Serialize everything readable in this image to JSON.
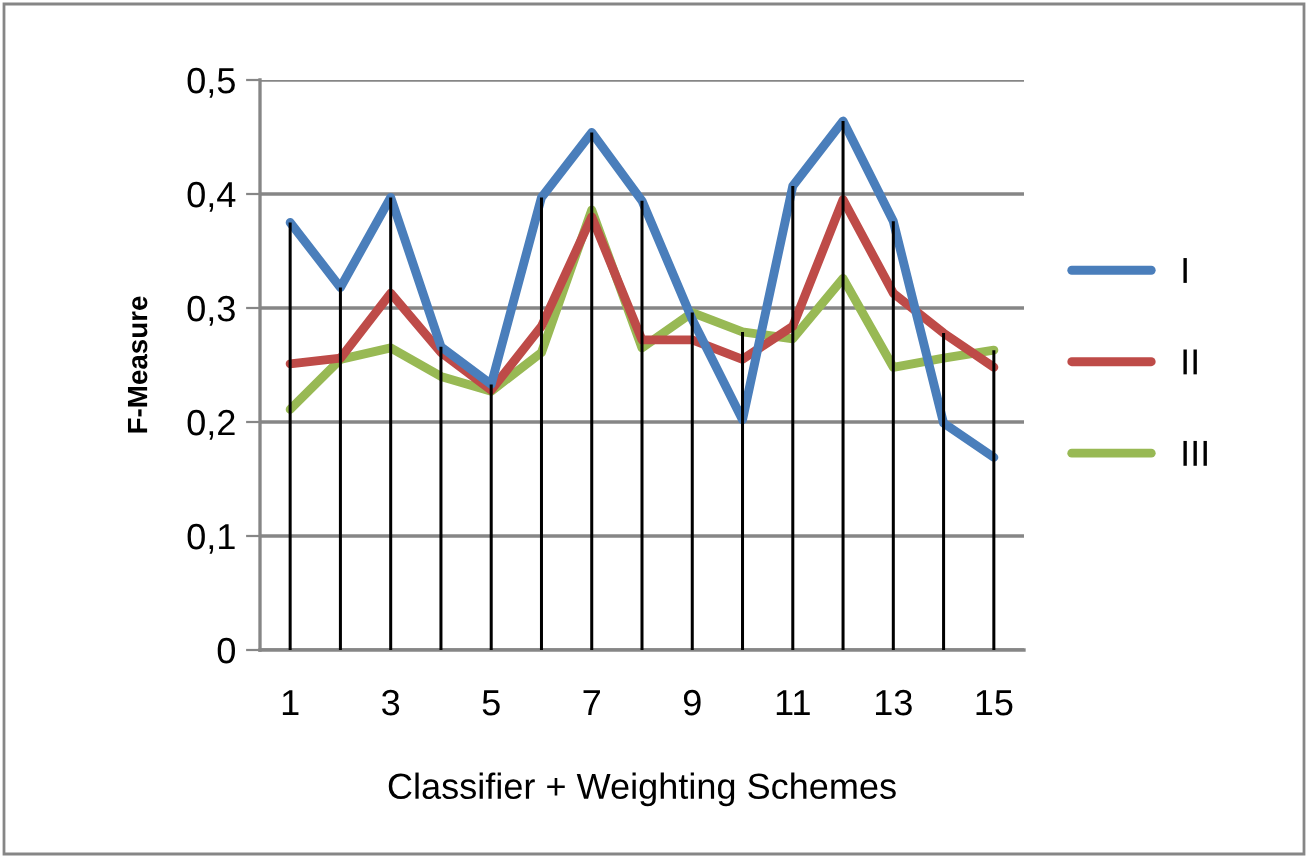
{
  "chart_data": {
    "type": "line",
    "xlabel": "Classifier + Weighting Schemes",
    "ylabel": "F-Measure",
    "categories": [
      "1",
      null,
      "3",
      null,
      "5",
      null,
      "7",
      null,
      "9",
      null,
      "11",
      null,
      "13",
      null,
      "15"
    ],
    "series": [
      {
        "name": "I",
        "color": "#4a7ebb",
        "values": [
          0.375,
          0.318,
          0.397,
          0.266,
          0.233,
          0.397,
          0.454,
          0.394,
          0.29,
          0.202,
          0.407,
          0.464,
          0.376,
          0.199,
          0.169
        ]
      },
      {
        "name": "II",
        "color": "#be4b48",
        "values": [
          0.251,
          0.256,
          0.313,
          0.261,
          0.228,
          0.284,
          0.38,
          0.272,
          0.272,
          0.255,
          0.284,
          0.395,
          0.313,
          0.278,
          0.248
        ]
      },
      {
        "name": "III",
        "color": "#98b954",
        "values": [
          0.211,
          0.255,
          0.265,
          0.24,
          0.227,
          0.261,
          0.386,
          0.265,
          0.296,
          0.279,
          0.273,
          0.326,
          0.248,
          0.256,
          0.263
        ]
      },
      {
        "type": "bar",
        "color": "#000000",
        "values": [
          0.375,
          0.318,
          0.397,
          0.266,
          0.233,
          0.397,
          0.454,
          0.394,
          0.296,
          0.279,
          0.407,
          0.464,
          0.376,
          0.278,
          0.263
        ]
      }
    ],
    "ylim": [
      0,
      0.5
    ],
    "yticks": [
      {
        "value": 0,
        "label": "0"
      },
      {
        "value": 0.1,
        "label": "0,1"
      },
      {
        "value": 0.2,
        "label": "0,2"
      },
      {
        "value": 0.3,
        "label": "0,3"
      },
      {
        "value": 0.4,
        "label": "0,4"
      },
      {
        "value": 0.5,
        "label": "0,5"
      }
    ],
    "grid": "y",
    "legend": "right",
    "marker": "none",
    "line_style": "solid"
  }
}
